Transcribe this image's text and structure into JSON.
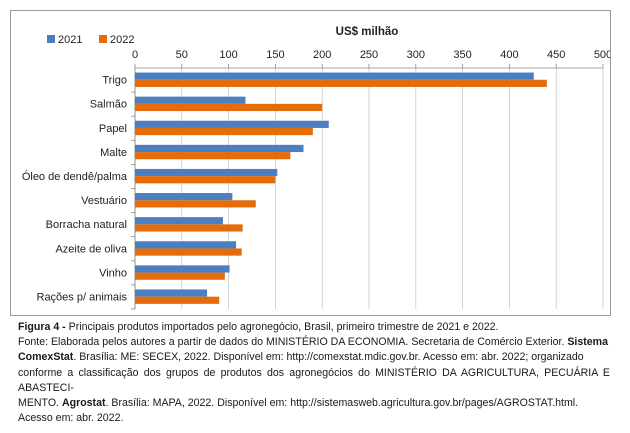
{
  "chart_data": {
    "type": "bar",
    "orientation": "horizontal",
    "title": "US$ milhão",
    "categories": [
      "Trigo",
      "Salmão",
      "Papel",
      "Malte",
      "Óleo de dendê/palma",
      "Vestuário",
      "Borracha natural",
      "Azeite de oliva",
      "Vinho",
      "Rações p/ animais"
    ],
    "series": [
      {
        "name": "2021",
        "color": "#4a7fc1",
        "values": [
          426,
          118,
          207,
          180,
          152,
          104,
          94,
          108,
          101,
          77
        ]
      },
      {
        "name": "2022",
        "color": "#e46c0a",
        "values": [
          440,
          200,
          190,
          166,
          150,
          129,
          115,
          114,
          96,
          90
        ]
      }
    ],
    "xlim": [
      0,
      500
    ],
    "xticks": [
      "0",
      "50",
      "100",
      "150",
      "200",
      "250",
      "300",
      "350",
      "400",
      "450",
      "500"
    ],
    "grid": true,
    "legend_position": "top-left"
  },
  "caption": {
    "figure_label": "Figura 4 -",
    "figure_text": " Principais produtos importados pelo agronegócio, Brasil, primeiro trimestre de 2021 e 2022.",
    "source_line1_pre": "Fonte: Elaborada pelos autores a partir de dados do MINISTÉRIO DA ECONOMIA. Secretaria de Comércio Exterior. ",
    "source_line1_bold": "Sistema",
    "source_line2_bold": "ComexStat",
    "source_line2_post": ". Brasília: ME: SECEX, 2022. Disponível em: http://comexstat.mdic.gov.br. Acesso em: abr. 2022; organizado",
    "source_line3": "conforme a classificação dos grupos de produtos dos agronegócios do MINISTÉRIO DA AGRICULTURA, PECUÁRIA E ABASTECI-",
    "source_line4_pre": "MENTO. ",
    "source_line4_bold": "Agrostat",
    "source_line4_post": ". Brasília: MAPA, 2022. Disponível em: http://sistemasweb.agricultura.gov.br/pages/AGROSTAT.html.",
    "source_line5": "Acesso em: abr. 2022."
  }
}
